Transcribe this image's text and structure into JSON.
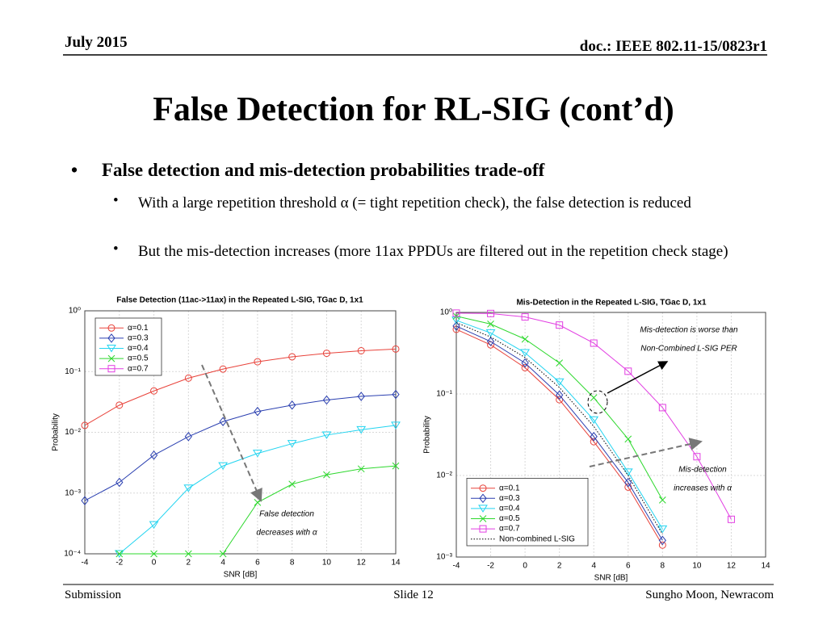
{
  "header": {
    "date": "July 2015",
    "doc": "doc.: IEEE 802.11-15/0823r1"
  },
  "title": "False Detection for RL-SIG (cont’d)",
  "bullets": {
    "main": "False detection and mis-detection probabilities trade-off",
    "sub": [
      "With a large repetition threshold α (= tight repetition check), the false detection is reduced",
      "But the mis-detection increases (more 11ax PPDUs are filtered out in the repetition check stage)"
    ]
  },
  "footer": {
    "left": "Submission",
    "center": "Slide 12",
    "right": "Sungho Moon, Newracom"
  },
  "chart_data": [
    {
      "type": "line",
      "title": "False Detection (11ac->11ax) in the Repeated L-SIG, TGac D, 1x1",
      "x_label": "SNR [dB]",
      "y_label": "Probability",
      "x": [
        -4,
        -2,
        0,
        2,
        4,
        6,
        8,
        10,
        12,
        14
      ],
      "xlim": [
        -4,
        14
      ],
      "xticks": [
        -4,
        -2,
        0,
        2,
        4,
        6,
        8,
        10,
        12,
        14
      ],
      "ylim": [
        0.0001,
        1
      ],
      "log_y": true,
      "grid": true,
      "legend": "upper left",
      "yticks": [
        {
          "value": 0.0001,
          "label": "10⁻⁴"
        },
        {
          "value": 0.001,
          "label": "10⁻³"
        },
        {
          "value": 0.01,
          "label": "10⁻²"
        },
        {
          "value": 0.1,
          "label": "10⁻¹"
        },
        {
          "value": 1,
          "label": "10⁰"
        }
      ],
      "series": [
        {
          "name": "α=0.1",
          "color": "#e8423a",
          "marker": "circle",
          "values": [
            0.013,
            0.028,
            0.048,
            0.078,
            0.11,
            0.145,
            0.175,
            0.2,
            0.22,
            0.235
          ]
        },
        {
          "name": "α=0.3",
          "color": "#2a3fb0",
          "marker": "diamond",
          "values": [
            0.00075,
            0.0015,
            0.0042,
            0.0085,
            0.015,
            0.022,
            0.028,
            0.034,
            0.039,
            0.042
          ]
        },
        {
          "name": "α=0.4",
          "color": "#22d4f0",
          "marker": "triangle",
          "values": [
            null,
            0.0001,
            0.0003,
            0.0012,
            0.0028,
            0.0045,
            0.0065,
            0.009,
            0.011,
            0.013
          ]
        },
        {
          "name": "α=0.5",
          "color": "#2ed82e",
          "marker": "x",
          "values": [
            null,
            0.0001,
            0.0001,
            0.0001,
            0.0001,
            0.0007,
            0.0014,
            0.002,
            0.0025,
            0.0028
          ]
        },
        {
          "name": "α=0.7",
          "color": "#e23ee2",
          "marker": "square",
          "values": [
            null,
            null,
            null,
            null,
            null,
            null,
            null,
            null,
            null,
            null
          ]
        }
      ],
      "annotations": [
        [
          "False detection",
          "decreases with α"
        ]
      ]
    },
    {
      "type": "line",
      "title": "Mis-Detection in the Repeated L-SIG, TGac D, 1x1",
      "x_label": "SNR [dB]",
      "y_label": "Probability",
      "x": [
        -4,
        -2,
        0,
        2,
        4,
        6,
        8,
        10,
        12,
        14
      ],
      "xlim": [
        -4,
        14
      ],
      "xticks": [
        -4,
        -2,
        0,
        2,
        4,
        6,
        8,
        10,
        12,
        14
      ],
      "ylim": [
        0.001,
        1
      ],
      "log_y": true,
      "grid": true,
      "legend": "lower left",
      "yticks": [
        {
          "value": 0.001,
          "label": "10⁻³"
        },
        {
          "value": 0.01,
          "label": "10⁻²"
        },
        {
          "value": 0.1,
          "label": "10⁻¹"
        },
        {
          "value": 1,
          "label": "10⁰"
        }
      ],
      "series": [
        {
          "name": "α=0.1",
          "color": "#e8423a",
          "marker": "circle",
          "values": [
            0.62,
            0.4,
            0.21,
            0.085,
            0.026,
            0.0072,
            0.0014,
            null,
            null,
            null
          ]
        },
        {
          "name": "α=0.3",
          "color": "#2a3fb0",
          "marker": "diamond",
          "values": [
            0.68,
            0.44,
            0.24,
            0.097,
            0.03,
            0.0082,
            0.0016,
            null,
            null,
            null
          ]
        },
        {
          "name": "α=0.4",
          "color": "#22d4f0",
          "marker": "triangle",
          "values": [
            0.8,
            0.56,
            0.32,
            0.14,
            0.048,
            0.011,
            0.0022,
            null,
            null,
            null
          ]
        },
        {
          "name": "α=0.5",
          "color": "#2ed82e",
          "marker": "x",
          "values": [
            0.9,
            0.72,
            0.47,
            0.24,
            0.09,
            0.028,
            0.005,
            null,
            null,
            null
          ]
        },
        {
          "name": "α=0.7",
          "color": "#e23ee2",
          "marker": "square",
          "values": [
            0.98,
            0.97,
            0.88,
            0.7,
            0.42,
            0.19,
            0.068,
            0.017,
            0.0029,
            null
          ]
        },
        {
          "name": "Non-combined L-SIG",
          "color": "#000000",
          "style": "dotted",
          "values": [
            0.75,
            0.5,
            0.28,
            0.12,
            0.04,
            0.01,
            0.0019,
            null,
            null,
            null
          ]
        }
      ],
      "annotations": [
        [
          "Mis-detection is worse than",
          "Non-Combined L-SIG PER"
        ],
        [
          "Mis-detection",
          "increases with α"
        ]
      ]
    }
  ]
}
